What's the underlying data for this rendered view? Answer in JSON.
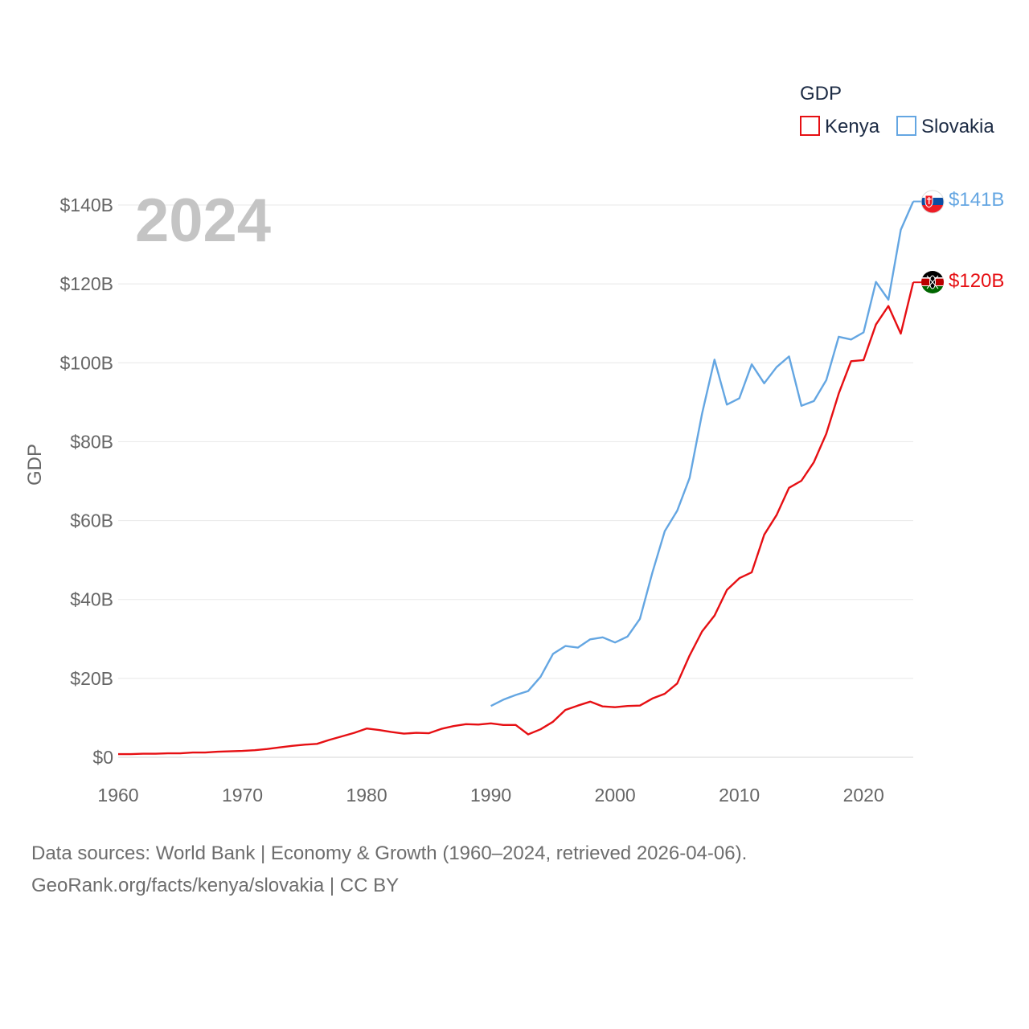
{
  "chart_data": {
    "type": "line",
    "title": "GDP",
    "year_label": "2024",
    "ylabel": "GDP",
    "xlim": [
      1960,
      2024
    ],
    "ylim": [
      0,
      140
    ],
    "x_ticks": [
      1960,
      1970,
      1980,
      1990,
      2000,
      2010,
      2020
    ],
    "y_ticks": [
      {
        "value": 0,
        "label": "$0"
      },
      {
        "value": 20,
        "label": "$20B"
      },
      {
        "value": 40,
        "label": "$40B"
      },
      {
        "value": 60,
        "label": "$60B"
      },
      {
        "value": 80,
        "label": "$80B"
      },
      {
        "value": 100,
        "label": "$100B"
      },
      {
        "value": 120,
        "label": "$120B"
      },
      {
        "value": 140,
        "label": "$140B"
      }
    ],
    "grid": true,
    "legend_position": "top-right",
    "series": [
      {
        "name": "Kenya",
        "color": "#e60f13",
        "end_label": "$120B",
        "x": [
          1960,
          1961,
          1962,
          1963,
          1964,
          1965,
          1966,
          1967,
          1968,
          1969,
          1970,
          1971,
          1972,
          1973,
          1974,
          1975,
          1976,
          1977,
          1978,
          1979,
          1980,
          1981,
          1982,
          1983,
          1984,
          1985,
          1986,
          1987,
          1988,
          1989,
          1990,
          1991,
          1992,
          1993,
          1994,
          1995,
          1996,
          1997,
          1998,
          1999,
          2000,
          2001,
          2002,
          2003,
          2004,
          2005,
          2006,
          2007,
          2008,
          2009,
          2010,
          2011,
          2012,
          2013,
          2014,
          2015,
          2016,
          2017,
          2018,
          2019,
          2020,
          2021,
          2022,
          2023,
          2024
        ],
        "values": [
          0.8,
          0.8,
          0.9,
          0.9,
          1.0,
          1.0,
          1.2,
          1.2,
          1.4,
          1.5,
          1.6,
          1.8,
          2.1,
          2.5,
          2.9,
          3.2,
          3.4,
          4.4,
          5.3,
          6.2,
          7.3,
          6.9,
          6.4,
          6.0,
          6.2,
          6.1,
          7.2,
          7.9,
          8.4,
          8.3,
          8.6,
          8.2,
          8.2,
          5.8,
          7.1,
          9.0,
          12.0,
          13.1,
          14.1,
          12.9,
          12.7,
          13.0,
          13.1,
          14.9,
          16.1,
          18.7,
          25.8,
          31.9,
          35.9,
          42.4,
          45.4,
          46.9,
          56.4,
          61.4,
          68.3,
          70.1,
          74.8,
          82.0,
          92.2,
          100.4,
          100.7,
          109.7,
          114.4,
          107.4,
          120.4
        ]
      },
      {
        "name": "Slovakia",
        "color": "#64a6e2",
        "end_label": "$141B",
        "x": [
          1990,
          1991,
          1992,
          1993,
          1994,
          1995,
          1996,
          1997,
          1998,
          1999,
          2000,
          2001,
          2002,
          2003,
          2004,
          2005,
          2006,
          2007,
          2008,
          2009,
          2010,
          2011,
          2012,
          2013,
          2014,
          2015,
          2016,
          2017,
          2018,
          2019,
          2020,
          2021,
          2022,
          2023,
          2024
        ],
        "values": [
          13.0,
          14.6,
          15.8,
          16.8,
          20.4,
          26.2,
          28.2,
          27.8,
          29.9,
          30.4,
          29.1,
          30.6,
          35.1,
          46.8,
          57.3,
          62.5,
          70.8,
          87.1,
          100.8,
          89.4,
          91.0,
          99.6,
          94.8,
          98.9,
          101.6,
          89.1,
          90.3,
          95.6,
          106.6,
          105.9,
          107.7,
          120.5,
          116.0,
          133.7,
          140.9
        ]
      }
    ]
  },
  "footer": {
    "line1": "Data sources: World Bank | Economy & Growth (1960–2024, retrieved 2026-04-06).",
    "line2": "GeoRank.org/facts/kenya/slovakia | CC BY"
  }
}
